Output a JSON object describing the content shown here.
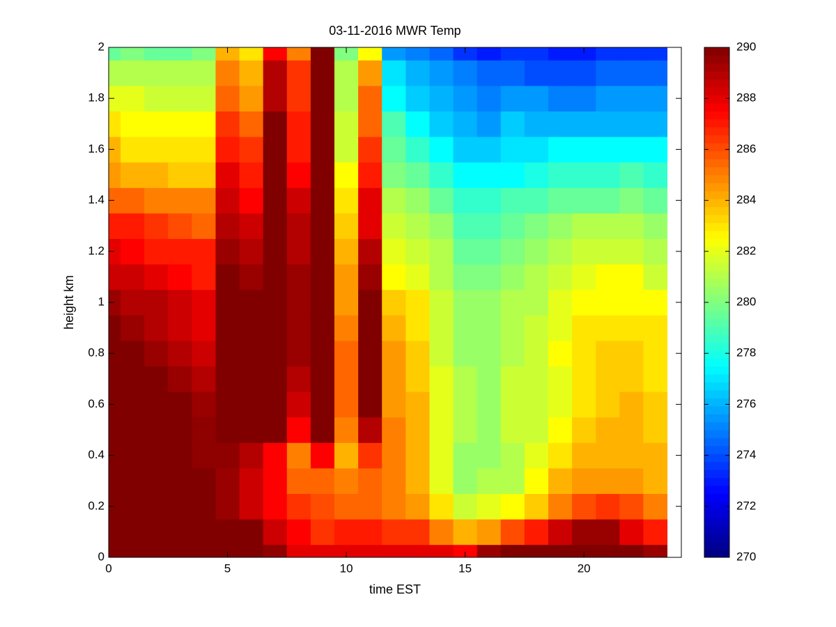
{
  "chart_data": {
    "type": "heatmap",
    "title": "03-11-2016 MWR Temp",
    "x_label": "time EST",
    "y_label": "height km",
    "colormap": "jet",
    "x": [
      0,
      1,
      2,
      3,
      4,
      5,
      6,
      7,
      8,
      9,
      10,
      11,
      12,
      13,
      14,
      15,
      16,
      17,
      18,
      19,
      20,
      21,
      22,
      23
    ],
    "y": [
      0,
      0.1,
      0.2,
      0.3,
      0.4,
      0.5,
      0.6,
      0.7,
      0.8,
      0.9,
      1,
      1.1,
      1.2,
      1.3,
      1.4,
      1.5,
      1.6,
      1.7,
      1.8,
      1.9,
      2
    ],
    "values": [
      [
        290,
        290,
        290,
        290,
        290,
        290,
        290,
        289.7,
        288,
        288,
        288,
        288,
        288,
        288,
        288,
        287.5,
        289.5,
        290,
        290,
        290,
        290,
        290,
        290,
        289.5
      ],
      [
        290,
        290,
        290,
        290,
        290,
        290,
        290,
        288.5,
        287.5,
        286.5,
        287,
        287,
        286.5,
        286.5,
        285,
        284,
        284.5,
        286,
        287,
        288.5,
        289.5,
        289.5,
        288,
        287
      ],
      [
        290,
        290,
        290,
        290,
        290,
        289.5,
        288.5,
        287.5,
        286.5,
        286,
        285.5,
        285.5,
        285,
        284.5,
        283,
        281.5,
        282,
        282.5,
        283.5,
        285,
        286,
        286.5,
        286,
        285
      ],
      [
        290,
        290,
        290,
        290,
        290,
        289.5,
        288.5,
        287.5,
        285.5,
        285.5,
        285,
        285.5,
        285,
        284,
        282,
        280.5,
        281,
        281,
        282.5,
        284,
        284.5,
        284.5,
        284.5,
        284
      ],
      [
        290,
        290,
        290,
        290,
        289.7,
        289.7,
        289,
        287.5,
        285,
        287.5,
        284,
        286.5,
        285,
        284,
        282,
        280.5,
        280.5,
        281,
        282,
        283,
        284,
        284,
        284,
        284
      ],
      [
        290,
        290,
        290,
        290,
        289.7,
        290,
        290,
        290,
        287.5,
        290,
        285,
        289,
        285,
        284,
        282,
        281,
        280.5,
        281.5,
        281.5,
        282.5,
        283.5,
        284,
        284,
        283.5
      ],
      [
        290,
        290,
        290,
        290,
        289.5,
        290,
        290,
        290,
        288.5,
        290,
        285.5,
        290,
        284.5,
        284,
        282,
        281,
        280.5,
        281.5,
        281.5,
        282,
        283,
        283.5,
        284,
        283.5
      ],
      [
        290,
        290,
        290,
        289.5,
        289,
        290,
        290,
        290,
        289,
        290,
        285.5,
        290,
        284.5,
        283.5,
        282,
        281,
        280.5,
        281.5,
        281.5,
        282,
        283,
        283.5,
        283.5,
        283
      ],
      [
        290,
        290,
        289.5,
        289,
        288.5,
        290,
        290,
        290,
        289.5,
        290,
        285.5,
        290,
        284.5,
        283.5,
        281.5,
        280.5,
        280.5,
        281,
        281.5,
        282.5,
        283,
        283.5,
        283.5,
        283
      ],
      [
        290,
        289.5,
        289,
        288.5,
        288,
        290,
        290,
        290,
        289.5,
        290,
        285,
        290,
        284,
        283,
        281.5,
        280.5,
        280.5,
        281,
        281.5,
        282,
        283,
        283,
        283,
        283
      ],
      [
        289.5,
        289,
        289,
        288.5,
        288,
        290,
        290,
        290,
        289.5,
        290,
        284.5,
        290,
        283.5,
        283,
        281.5,
        280.5,
        280.5,
        281,
        281,
        282,
        282.5,
        282.5,
        282.5,
        282.5
      ],
      [
        288.5,
        288.5,
        288,
        287.5,
        287,
        290,
        289.5,
        290,
        289.5,
        290,
        284.5,
        289.5,
        282.5,
        282,
        281,
        280,
        280,
        280.5,
        281,
        281.5,
        282,
        282.5,
        282.5,
        281.5
      ],
      [
        288,
        287.5,
        287,
        287,
        287,
        289.5,
        289,
        290,
        289,
        290,
        284,
        289,
        282,
        281.5,
        281,
        279.5,
        279.5,
        280,
        280.5,
        281,
        281.5,
        281.5,
        281.5,
        281
      ],
      [
        287,
        287,
        286.5,
        286,
        285.5,
        289,
        288.5,
        290,
        289,
        290,
        283.5,
        288,
        281.5,
        281,
        280.5,
        279,
        279,
        279.5,
        280,
        280.5,
        281,
        281,
        281,
        280.5
      ],
      [
        285.5,
        285.5,
        285,
        285,
        285,
        288.5,
        287.5,
        290,
        288.5,
        290,
        283,
        288,
        281,
        280.5,
        279.5,
        278.5,
        278.5,
        279,
        279,
        279.5,
        279.5,
        279.5,
        280,
        279.5
      ],
      [
        284.5,
        284,
        284,
        283.5,
        283.5,
        288,
        287,
        290,
        287.5,
        290,
        282.5,
        287,
        280,
        279.5,
        278.5,
        277.5,
        277.5,
        277.5,
        278,
        278.5,
        278.5,
        278.5,
        279,
        278.5
      ],
      [
        284,
        283,
        283,
        283,
        283,
        287,
        286.5,
        290,
        287,
        290,
        281.5,
        286.5,
        279.5,
        278.5,
        277.5,
        276.5,
        276.5,
        277,
        277,
        277.5,
        277.5,
        277.5,
        277.5,
        277.5
      ],
      [
        283,
        282.5,
        282.5,
        282.5,
        282.5,
        286.5,
        285.5,
        290,
        287,
        290,
        281.5,
        285.5,
        279,
        277.5,
        276.5,
        276,
        275.5,
        276.5,
        276,
        276,
        276,
        276,
        276,
        276
      ],
      [
        282,
        282,
        281.5,
        281.5,
        281.5,
        285.5,
        284.5,
        289,
        286.5,
        290,
        281,
        285.5,
        277.5,
        276.5,
        276,
        275.5,
        275,
        275.5,
        275.5,
        275,
        275,
        275.5,
        275.5,
        275.5
      ],
      [
        281,
        281,
        281,
        281,
        281,
        285,
        284,
        289,
        286.5,
        290,
        281,
        284.5,
        277,
        276,
        275.5,
        275,
        274.5,
        274.5,
        274,
        274,
        274,
        274.5,
        274.5,
        274.5
      ],
      [
        279.5,
        280,
        279.5,
        279.5,
        280,
        284,
        283,
        287.5,
        285,
        290,
        280,
        282.5,
        275.5,
        275,
        274.5,
        273.5,
        273,
        273.5,
        273.5,
        273,
        273,
        273.5,
        273.5,
        273.5
      ]
    ],
    "xlim": [
      0,
      24.1
    ],
    "xticks": [
      0,
      5,
      10,
      15,
      20
    ],
    "ylim": [
      0,
      2
    ],
    "yticks": [
      0,
      0.2,
      0.4,
      0.6,
      0.8,
      1,
      1.2,
      1.4,
      1.6,
      1.8,
      2
    ],
    "colorbar": {
      "lim": [
        270,
        290
      ],
      "ticks": [
        270,
        272,
        274,
        276,
        278,
        280,
        282,
        284,
        286,
        288,
        290
      ]
    }
  }
}
